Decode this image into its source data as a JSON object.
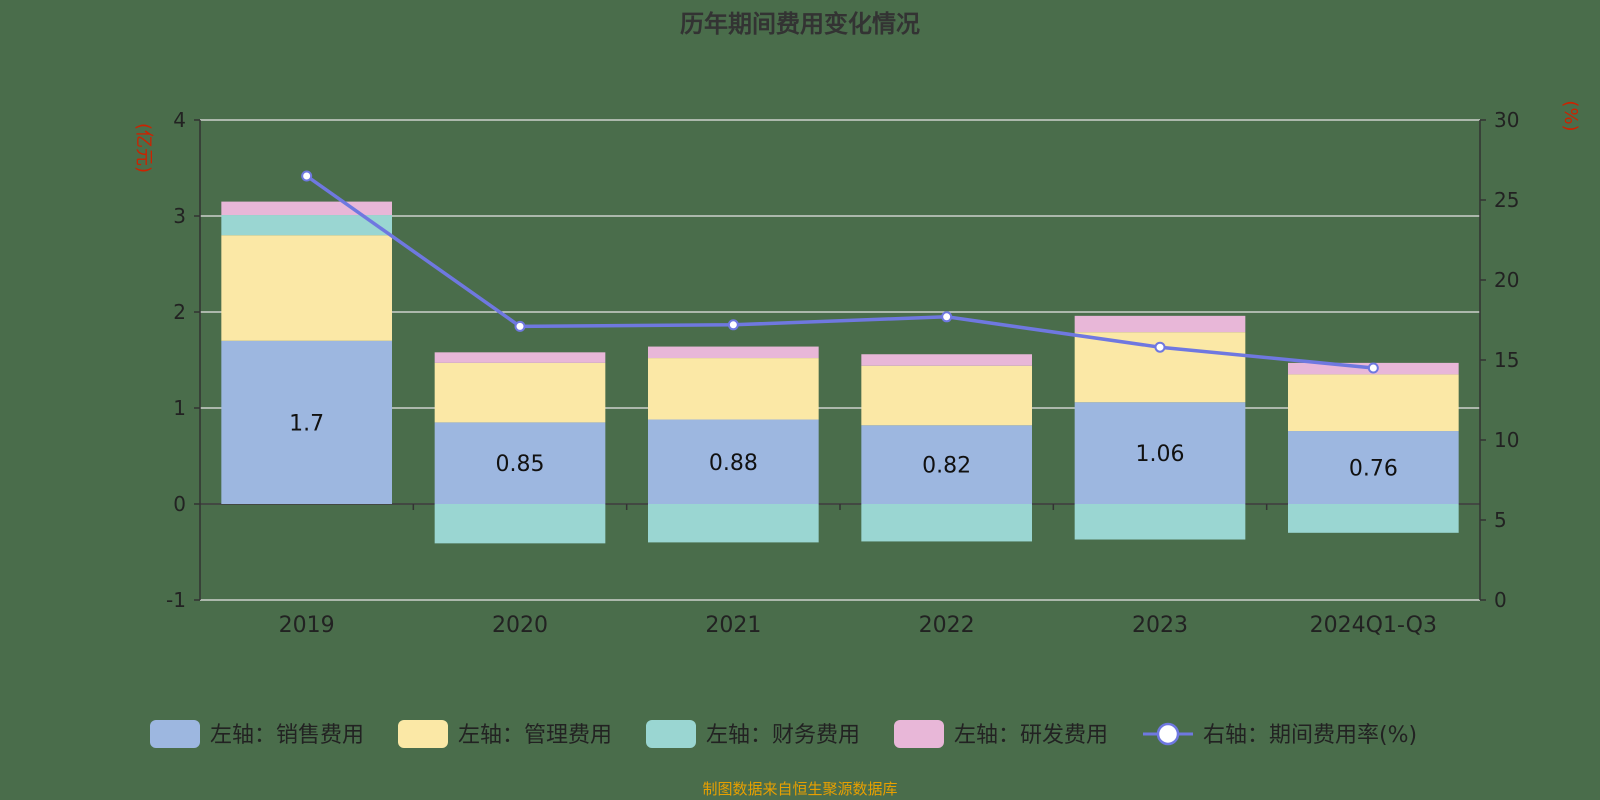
{
  "chart_data": {
    "type": "bar",
    "title": "历年期间费用变化情况",
    "left_axis_unit": "(亿元)",
    "right_axis_unit": "(%)",
    "categories": [
      "2019",
      "2020",
      "2021",
      "2022",
      "2023",
      "2024Q1-Q3"
    ],
    "left_ylim": [
      -1,
      4
    ],
    "left_ticks": [
      -1,
      0,
      1,
      2,
      3,
      4
    ],
    "right_ylim": [
      0,
      30
    ],
    "right_ticks": [
      0,
      5,
      10,
      15,
      20,
      25,
      30
    ],
    "grid": true,
    "stacked": true,
    "series": [
      {
        "name": "左轴：销售费用",
        "axis": "left",
        "type": "bar",
        "color": "#9db7e0",
        "values": [
          1.7,
          0.85,
          0.88,
          0.82,
          1.06,
          0.76
        ],
        "show_labels": true
      },
      {
        "name": "左轴：管理费用",
        "axis": "left",
        "type": "bar",
        "color": "#fbe8a6",
        "values": [
          1.1,
          0.62,
          0.64,
          0.62,
          0.73,
          0.59
        ]
      },
      {
        "name": "左轴：财务费用",
        "axis": "left",
        "type": "bar",
        "color": "#9ad6d2",
        "values": [
          0.21,
          -0.41,
          -0.4,
          -0.39,
          -0.37,
          -0.3
        ]
      },
      {
        "name": "左轴：研发费用",
        "axis": "left",
        "type": "bar",
        "color": "#e8b7d8",
        "values": [
          0.14,
          0.11,
          0.12,
          0.12,
          0.17,
          0.12
        ]
      },
      {
        "name": "右轴：期间费用率(%)",
        "axis": "right",
        "type": "line",
        "color": "#6f78e0",
        "values": [
          26.5,
          17.1,
          17.2,
          17.7,
          15.8,
          14.5
        ]
      }
    ],
    "legend_position": "bottom"
  },
  "source": "制图数据来自恒生聚源数据库"
}
